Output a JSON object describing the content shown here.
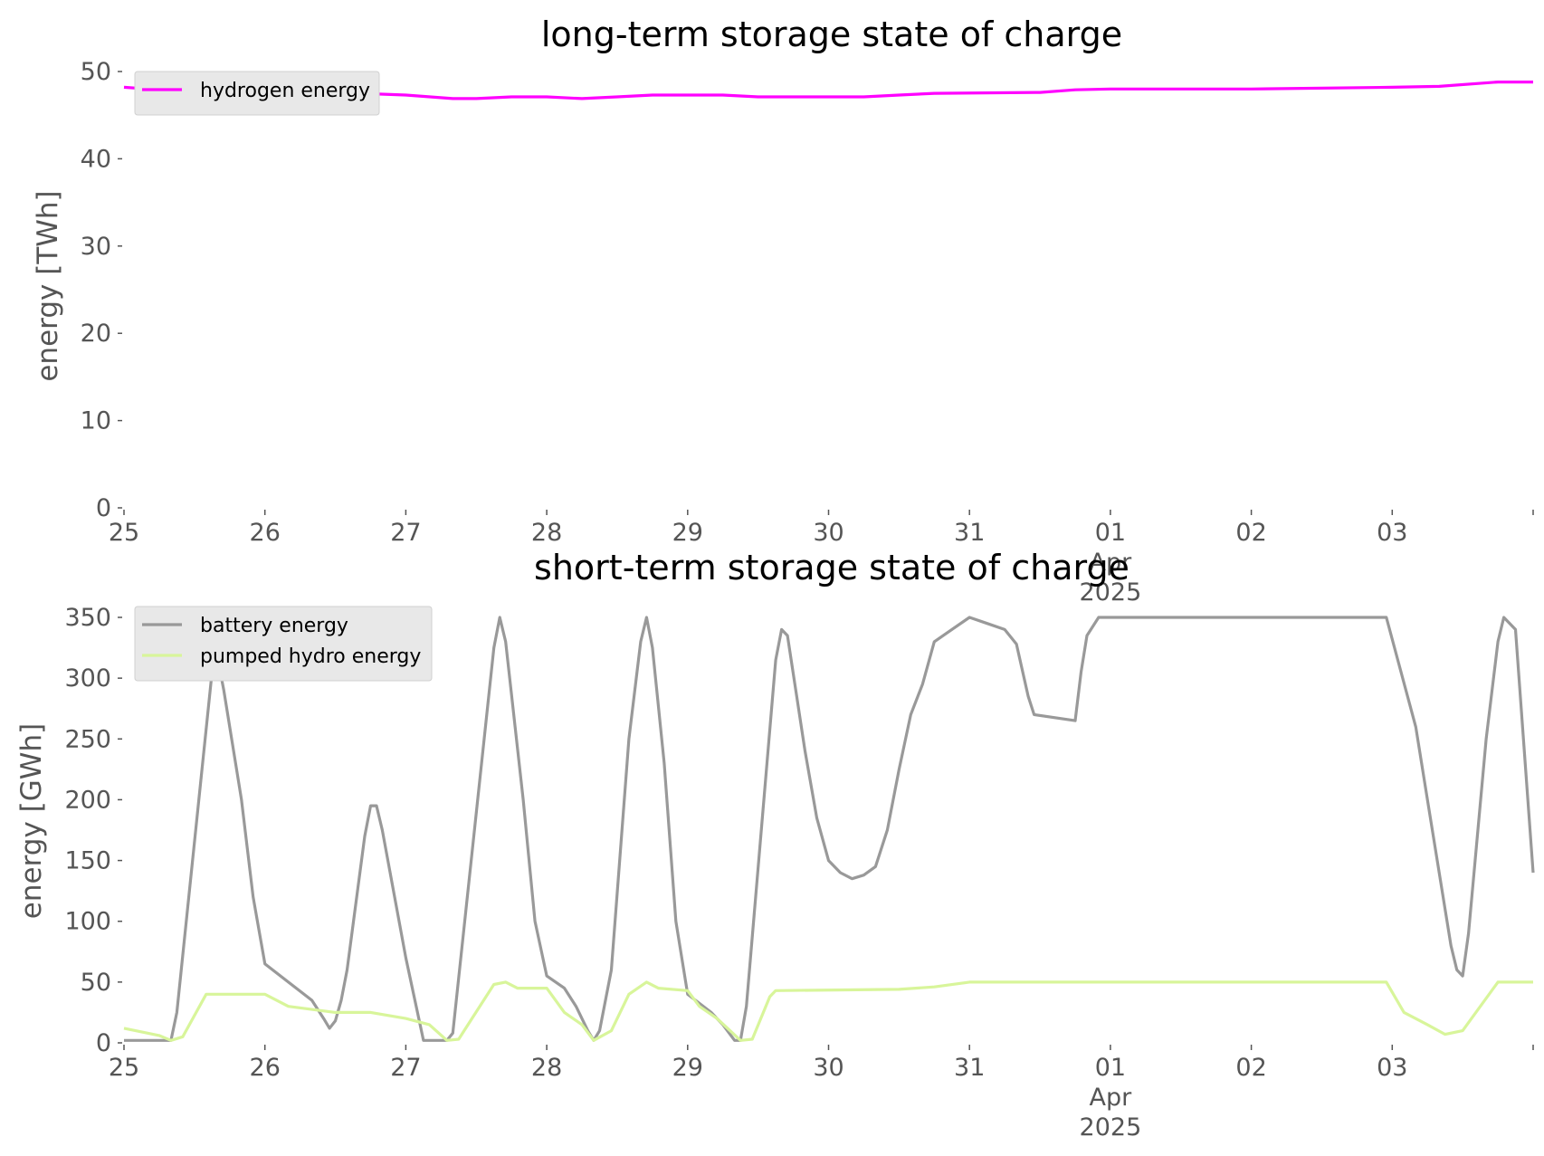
{
  "chart_data": [
    {
      "type": "line",
      "title": "long-term storage state of charge",
      "ylabel": "energy [TWh]",
      "ylim": [
        0,
        50
      ],
      "xlim": [
        "2025-03-25",
        "2025-04-04"
      ],
      "yticks": [
        0,
        10,
        20,
        30,
        40,
        50
      ],
      "xticks": [
        {
          "date": "2025-03-25",
          "label": "25"
        },
        {
          "date": "2025-03-26",
          "label": "26"
        },
        {
          "date": "2025-03-27",
          "label": "27"
        },
        {
          "date": "2025-03-28",
          "label": "28"
        },
        {
          "date": "2025-03-29",
          "label": "29"
        },
        {
          "date": "2025-03-30",
          "label": "30"
        },
        {
          "date": "2025-03-31",
          "label": "31"
        },
        {
          "date": "2025-04-01",
          "label": "01\nApr\n2025"
        },
        {
          "date": "2025-04-02",
          "label": "02"
        },
        {
          "date": "2025-04-03",
          "label": "03"
        }
      ],
      "grid": false,
      "legend_position": "top-left",
      "series": [
        {
          "name": "hydrogen energy",
          "color": "#ff00ff",
          "points": [
            [
              "2025-03-25T00:00",
              48.2
            ],
            [
              "2025-03-25T06:00",
              47.9
            ],
            [
              "2025-03-25T12:00",
              47.6
            ],
            [
              "2025-03-26T00:00",
              47.5
            ],
            [
              "2025-03-26T12:00",
              47.6
            ],
            [
              "2025-03-27T00:00",
              47.3
            ],
            [
              "2025-03-27T08:00",
              46.9
            ],
            [
              "2025-03-27T12:00",
              46.9
            ],
            [
              "2025-03-27T18:00",
              47.1
            ],
            [
              "2025-03-28T00:00",
              47.1
            ],
            [
              "2025-03-28T06:00",
              46.9
            ],
            [
              "2025-03-28T12:00",
              47.1
            ],
            [
              "2025-03-28T18:00",
              47.3
            ],
            [
              "2025-03-29T06:00",
              47.3
            ],
            [
              "2025-03-29T12:00",
              47.1
            ],
            [
              "2025-03-30T00:00",
              47.1
            ],
            [
              "2025-03-30T06:00",
              47.1
            ],
            [
              "2025-03-30T12:00",
              47.3
            ],
            [
              "2025-03-30T18:00",
              47.5
            ],
            [
              "2025-03-31T12:00",
              47.6
            ],
            [
              "2025-03-31T18:00",
              47.9
            ],
            [
              "2025-04-01T00:00",
              48.0
            ],
            [
              "2025-04-02T00:00",
              48.0
            ],
            [
              "2025-04-03T00:00",
              48.2
            ],
            [
              "2025-04-03T08:00",
              48.3
            ],
            [
              "2025-04-03T18:00",
              48.8
            ],
            [
              "2025-04-04T00:00",
              48.8
            ]
          ]
        }
      ]
    },
    {
      "type": "line",
      "title": "short-term storage state of charge",
      "ylabel": "energy [GWh]",
      "ylim": [
        0,
        350
      ],
      "xlim": [
        "2025-03-25",
        "2025-04-04"
      ],
      "yticks": [
        0,
        50,
        100,
        150,
        200,
        250,
        300,
        350
      ],
      "xticks": [
        {
          "date": "2025-03-25",
          "label": "25"
        },
        {
          "date": "2025-03-26",
          "label": "26"
        },
        {
          "date": "2025-03-27",
          "label": "27"
        },
        {
          "date": "2025-03-28",
          "label": "28"
        },
        {
          "date": "2025-03-29",
          "label": "29"
        },
        {
          "date": "2025-03-30",
          "label": "30"
        },
        {
          "date": "2025-03-31",
          "label": "31"
        },
        {
          "date": "2025-04-01",
          "label": "01\nApr\n2025"
        },
        {
          "date": "2025-04-02",
          "label": "02"
        },
        {
          "date": "2025-04-03",
          "label": "03"
        }
      ],
      "grid": false,
      "legend_position": "top-left",
      "series": [
        {
          "name": "battery energy",
          "color": "#999999",
          "points": [
            [
              "2025-03-25T00:00",
              2
            ],
            [
              "2025-03-25T08:00",
              2
            ],
            [
              "2025-03-25T09:00",
              25
            ],
            [
              "2025-03-25T15:00",
              305
            ],
            [
              "2025-03-25T16:00",
              315
            ],
            [
              "2025-03-25T17:00",
              290
            ],
            [
              "2025-03-25T20:00",
              200
            ],
            [
              "2025-03-25T22:00",
              120
            ],
            [
              "2025-03-26T00:00",
              65
            ],
            [
              "2025-03-26T04:00",
              50
            ],
            [
              "2025-03-26T08:00",
              35
            ],
            [
              "2025-03-26T10:00",
              20
            ],
            [
              "2025-03-26T11:00",
              12
            ],
            [
              "2025-03-26T12:00",
              18
            ],
            [
              "2025-03-26T13:00",
              35
            ],
            [
              "2025-03-26T14:00",
              60
            ],
            [
              "2025-03-26T17:00",
              170
            ],
            [
              "2025-03-26T18:00",
              195
            ],
            [
              "2025-03-26T19:00",
              195
            ],
            [
              "2025-03-26T20:00",
              175
            ],
            [
              "2025-03-27T00:00",
              70
            ],
            [
              "2025-03-27T03:00",
              2
            ],
            [
              "2025-03-27T07:00",
              2
            ],
            [
              "2025-03-27T08:00",
              8
            ],
            [
              "2025-03-27T15:00",
              325
            ],
            [
              "2025-03-27T16:00",
              350
            ],
            [
              "2025-03-27T17:00",
              330
            ],
            [
              "2025-03-27T20:00",
              200
            ],
            [
              "2025-03-27T22:00",
              100
            ],
            [
              "2025-03-28T00:00",
              55
            ],
            [
              "2025-03-28T03:00",
              45
            ],
            [
              "2025-03-28T05:00",
              30
            ],
            [
              "2025-03-28T07:00",
              10
            ],
            [
              "2025-03-28T08:00",
              2
            ],
            [
              "2025-03-28T09:00",
              10
            ],
            [
              "2025-03-28T11:00",
              60
            ],
            [
              "2025-03-28T14:00",
              250
            ],
            [
              "2025-03-28T16:00",
              330
            ],
            [
              "2025-03-28T17:00",
              350
            ],
            [
              "2025-03-28T18:00",
              325
            ],
            [
              "2025-03-28T20:00",
              230
            ],
            [
              "2025-03-28T22:00",
              100
            ],
            [
              "2025-03-29T00:00",
              40
            ],
            [
              "2025-03-29T04:00",
              25
            ],
            [
              "2025-03-29T06:00",
              15
            ],
            [
              "2025-03-29T08:00",
              2
            ],
            [
              "2025-03-29T09:00",
              2
            ],
            [
              "2025-03-29T10:00",
              30
            ],
            [
              "2025-03-29T15:00",
              315
            ],
            [
              "2025-03-29T16:00",
              340
            ],
            [
              "2025-03-29T17:00",
              335
            ],
            [
              "2025-03-29T20:00",
              240
            ],
            [
              "2025-03-29T22:00",
              185
            ],
            [
              "2025-03-30T00:00",
              150
            ],
            [
              "2025-03-30T02:00",
              140
            ],
            [
              "2025-03-30T04:00",
              135
            ],
            [
              "2025-03-30T06:00",
              138
            ],
            [
              "2025-03-30T08:00",
              145
            ],
            [
              "2025-03-30T10:00",
              175
            ],
            [
              "2025-03-30T12:00",
              225
            ],
            [
              "2025-03-30T14:00",
              270
            ],
            [
              "2025-03-30T16:00",
              295
            ],
            [
              "2025-03-30T18:00",
              330
            ],
            [
              "2025-03-30T21:00",
              340
            ],
            [
              "2025-03-31T00:00",
              350
            ],
            [
              "2025-03-31T03:00",
              345
            ],
            [
              "2025-03-31T06:00",
              340
            ],
            [
              "2025-03-31T08:00",
              328
            ],
            [
              "2025-03-31T10:00",
              285
            ],
            [
              "2025-03-31T11:00",
              270
            ],
            [
              "2025-03-31T18:00",
              265
            ],
            [
              "2025-03-31T19:00",
              305
            ],
            [
              "2025-03-31T20:00",
              335
            ],
            [
              "2025-03-31T22:00",
              350
            ],
            [
              "2025-04-02T23:00",
              350
            ],
            [
              "2025-04-03T04:00",
              260
            ],
            [
              "2025-04-03T06:00",
              200
            ],
            [
              "2025-04-03T10:00",
              80
            ],
            [
              "2025-04-03T11:00",
              60
            ],
            [
              "2025-04-03T12:00",
              55
            ],
            [
              "2025-04-03T13:00",
              90
            ],
            [
              "2025-04-03T16:00",
              250
            ],
            [
              "2025-04-03T18:00",
              330
            ],
            [
              "2025-04-03T19:00",
              350
            ],
            [
              "2025-04-03T21:00",
              340
            ],
            [
              "2025-04-04T00:00",
              140
            ]
          ]
        },
        {
          "name": "pumped hydro energy",
          "color": "#d8f59a",
          "points": [
            [
              "2025-03-25T00:00",
              12
            ],
            [
              "2025-03-25T06:00",
              6
            ],
            [
              "2025-03-25T08:00",
              2
            ],
            [
              "2025-03-25T10:00",
              5
            ],
            [
              "2025-03-25T14:00",
              40
            ],
            [
              "2025-03-26T00:00",
              40
            ],
            [
              "2025-03-26T04:00",
              30
            ],
            [
              "2025-03-26T12:00",
              25
            ],
            [
              "2025-03-26T18:00",
              25
            ],
            [
              "2025-03-27T00:00",
              20
            ],
            [
              "2025-03-27T04:00",
              15
            ],
            [
              "2025-03-27T07:00",
              2
            ],
            [
              "2025-03-27T09:00",
              3
            ],
            [
              "2025-03-27T15:00",
              48
            ],
            [
              "2025-03-27T17:00",
              50
            ],
            [
              "2025-03-27T19:00",
              45
            ],
            [
              "2025-03-28T00:00",
              45
            ],
            [
              "2025-03-28T03:00",
              25
            ],
            [
              "2025-03-28T06:00",
              15
            ],
            [
              "2025-03-28T08:00",
              2
            ],
            [
              "2025-03-28T11:00",
              10
            ],
            [
              "2025-03-28T14:00",
              40
            ],
            [
              "2025-03-28T17:00",
              50
            ],
            [
              "2025-03-28T19:00",
              45
            ],
            [
              "2025-03-29T00:00",
              43
            ],
            [
              "2025-03-29T02:00",
              30
            ],
            [
              "2025-03-29T05:00",
              20
            ],
            [
              "2025-03-29T09:00",
              2
            ],
            [
              "2025-03-29T11:00",
              3
            ],
            [
              "2025-03-29T14:00",
              38
            ],
            [
              "2025-03-29T15:00",
              43
            ],
            [
              "2025-03-30T12:00",
              44
            ],
            [
              "2025-03-30T18:00",
              46
            ],
            [
              "2025-03-31T00:00",
              50
            ],
            [
              "2025-04-02T23:00",
              50
            ],
            [
              "2025-04-03T02:00",
              25
            ],
            [
              "2025-04-03T06:00",
              15
            ],
            [
              "2025-04-03T09:00",
              7
            ],
            [
              "2025-04-03T12:00",
              10
            ],
            [
              "2025-04-03T18:00",
              50
            ],
            [
              "2025-04-04T00:00",
              50
            ]
          ]
        }
      ]
    }
  ]
}
